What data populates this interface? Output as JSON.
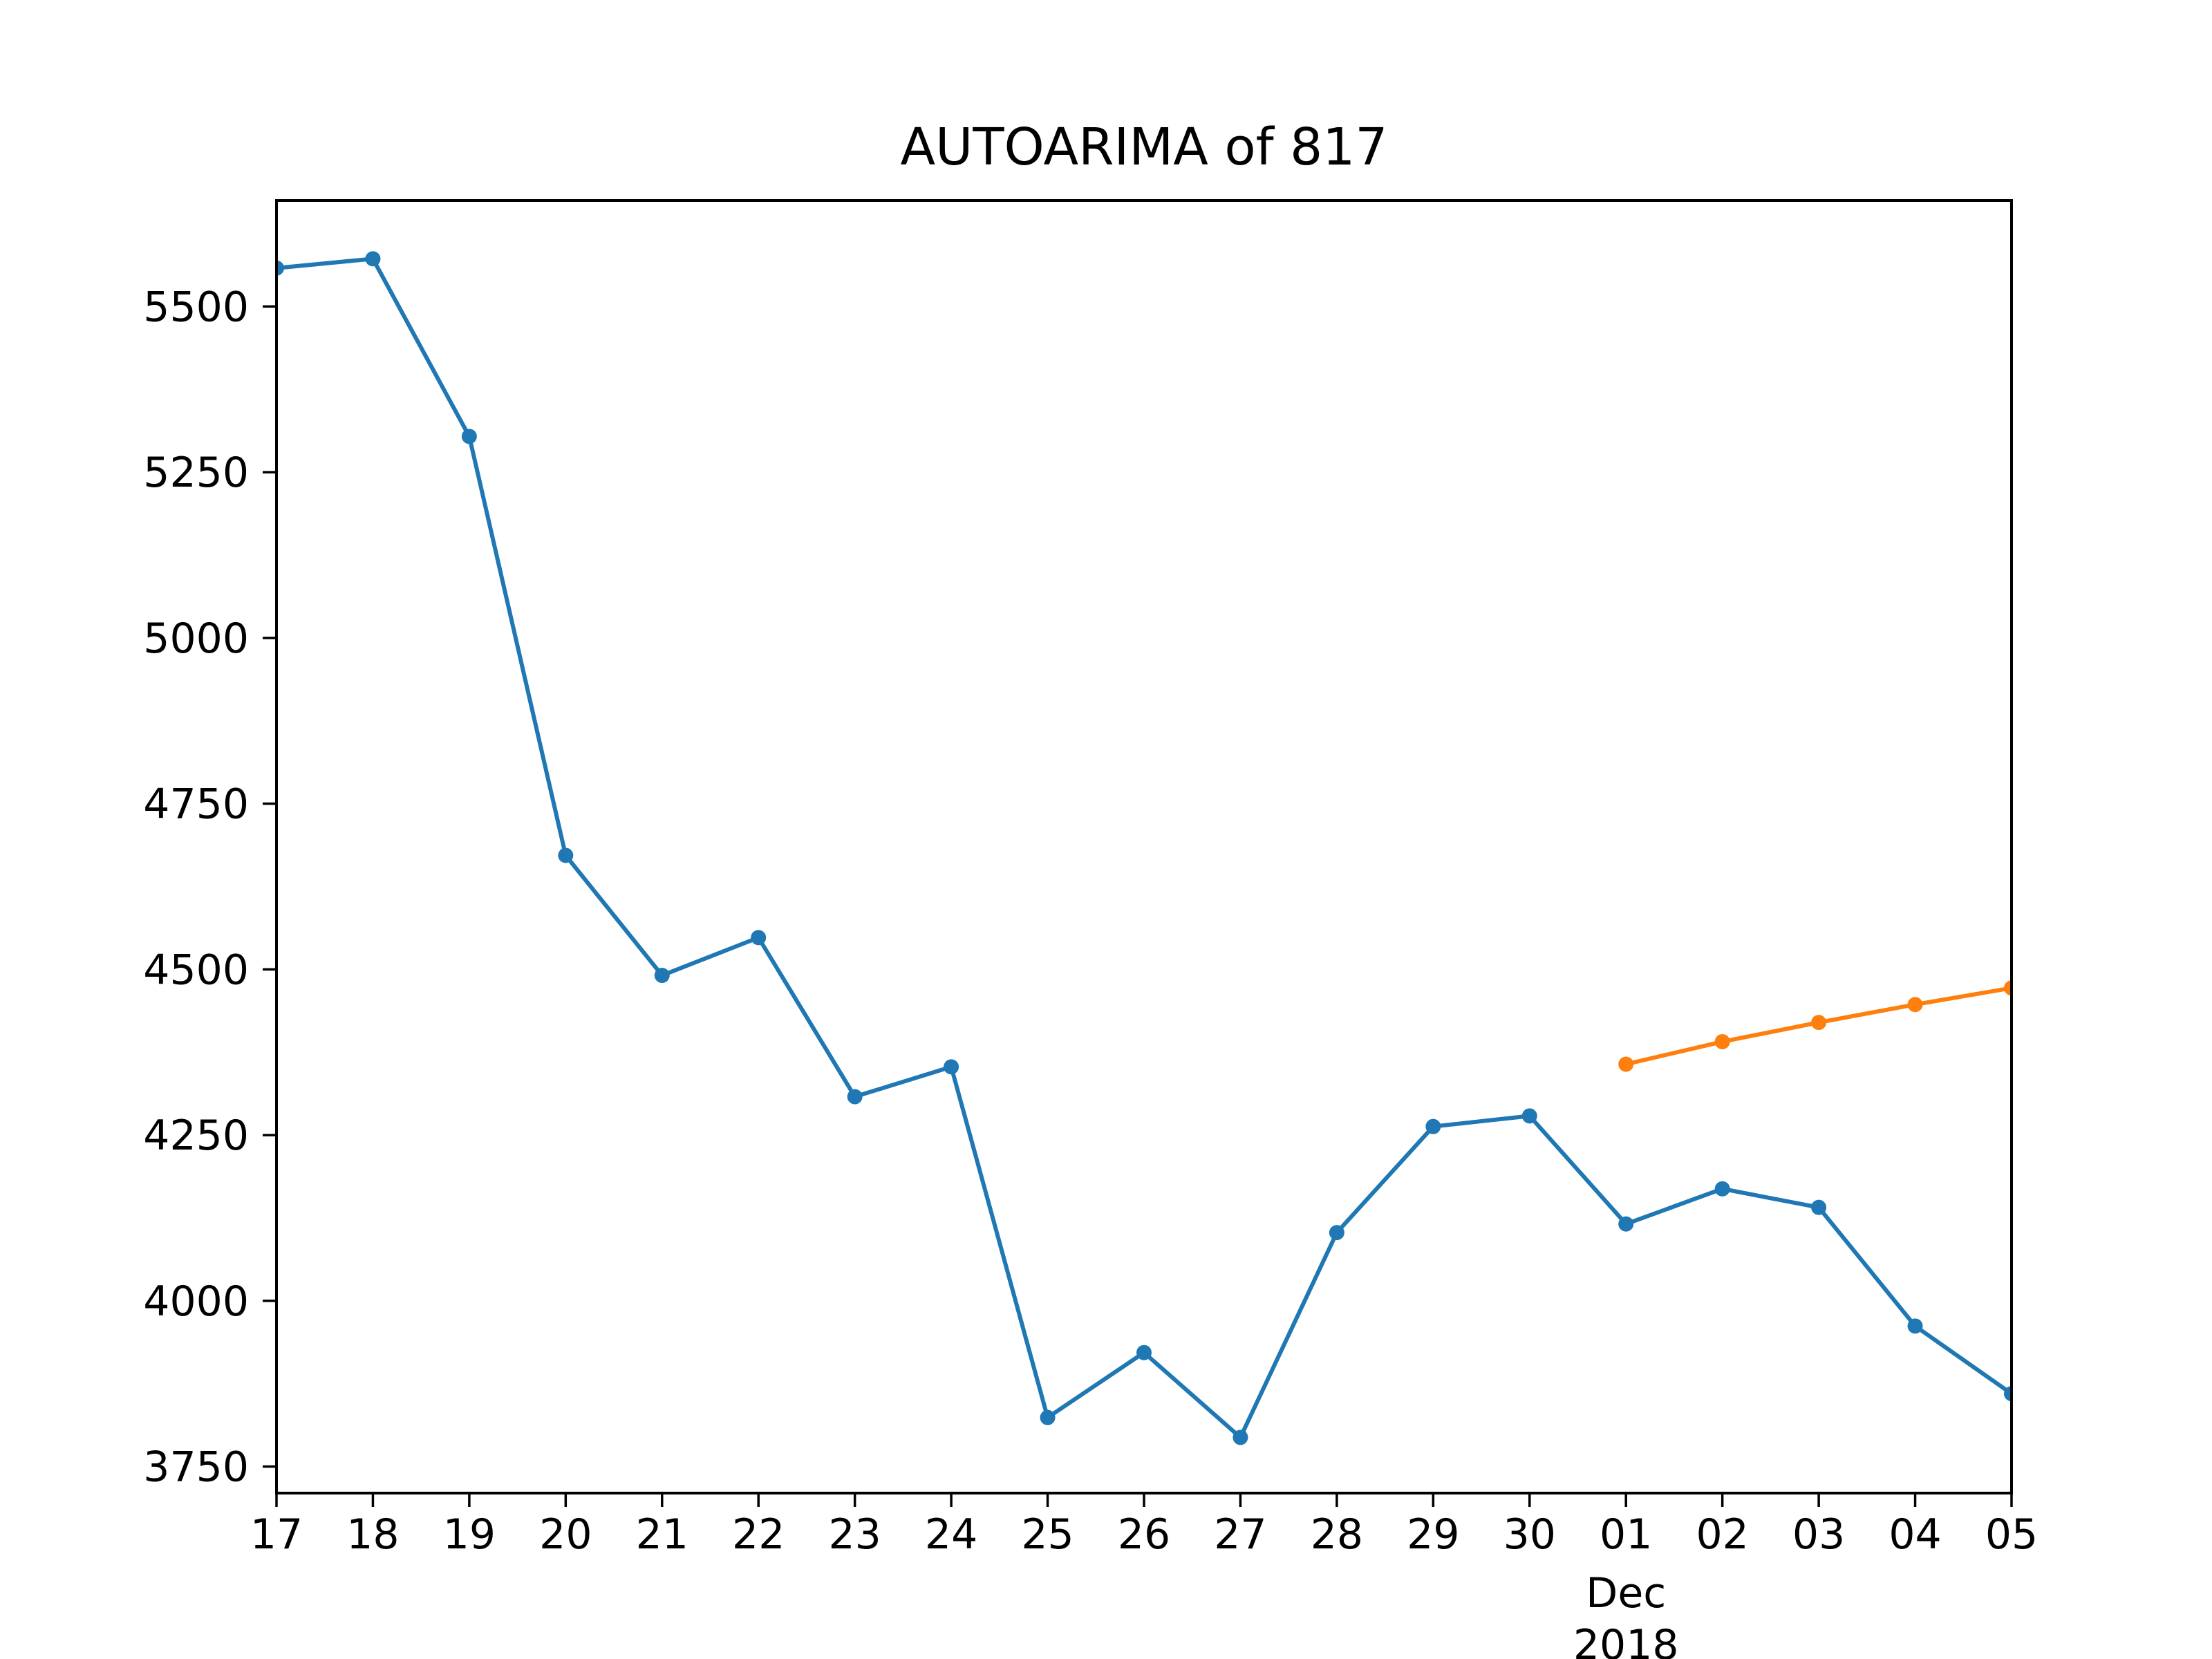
{
  "chart_data": {
    "type": "line",
    "title": "AUTOARIMA of 817",
    "xlabel": "",
    "ylabel": "",
    "x": [
      "2018-11-17",
      "2018-11-18",
      "2018-11-19",
      "2018-11-20",
      "2018-11-21",
      "2018-11-22",
      "2018-11-23",
      "2018-11-24",
      "2018-11-25",
      "2018-11-26",
      "2018-11-27",
      "2018-11-28",
      "2018-11-29",
      "2018-11-30",
      "2018-12-01",
      "2018-12-02",
      "2018-12-03",
      "2018-12-04",
      "2018-12-05"
    ],
    "xlim": [
      "2018-11-17",
      "2018-12-05"
    ],
    "x_tick_labels": [
      "17",
      "18",
      "19",
      "20",
      "21",
      "22",
      "23",
      "24",
      "25",
      "26",
      "27",
      "28",
      "29",
      "30",
      "01",
      "02",
      "03",
      "04",
      "05"
    ],
    "x_month_label": "Dec",
    "x_year_label": "2018",
    "ylim": [
      3710,
      5660
    ],
    "y_ticks": [
      3750,
      4000,
      4250,
      4500,
      4750,
      5000,
      5250,
      5500
    ],
    "y_tick_labels": [
      "3750",
      "4000",
      "4250",
      "4500",
      "4750",
      "5000",
      "5250",
      "5500"
    ],
    "grid": false,
    "series": [
      {
        "color": "#1f77b4",
        "marker": "circle",
        "x": [
          "2018-11-17",
          "2018-11-18",
          "2018-11-19",
          "2018-11-20",
          "2018-11-21",
          "2018-11-22",
          "2018-11-23",
          "2018-11-24",
          "2018-11-25",
          "2018-11-26",
          "2018-11-27",
          "2018-11-28",
          "2018-11-29",
          "2018-11-30",
          "2018-12-01",
          "2018-12-02",
          "2018-12-03",
          "2018-12-04",
          "2018-12-05"
        ],
        "values": [
          5558,
          5572,
          5304,
          4672,
          4491,
          4548,
          4308,
          4353,
          3824,
          3922,
          3794,
          4103,
          4263,
          4279,
          4116,
          4169,
          4141,
          3962,
          3860
        ]
      },
      {
        "color": "#ff7f0e",
        "marker": "circle",
        "x": [
          "2018-12-01",
          "2018-12-02",
          "2018-12-03",
          "2018-12-04",
          "2018-12-05"
        ],
        "values": [
          4357,
          4391,
          4420,
          4447,
          4472
        ]
      }
    ]
  }
}
